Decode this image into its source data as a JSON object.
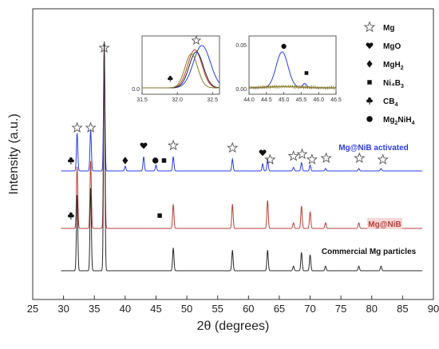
{
  "chart_data": {
    "type": "line",
    "xlabel": "2θ (degrees)",
    "ylabel": "Intensity (a.u.)",
    "xlim": [
      25,
      90
    ],
    "x_ticks": [
      "25",
      "30",
      "35",
      "40",
      "45",
      "50",
      "55",
      "60",
      "65",
      "70",
      "75",
      "80",
      "85",
      "90"
    ],
    "series": [
      {
        "name": "Mg@NiB activated",
        "color": "#2a3edb",
        "label_bg": "",
        "peaks": [
          {
            "x": 32.2,
            "h": 0.32
          },
          {
            "x": 34.4,
            "h": 0.35
          },
          {
            "x": 36.6,
            "h": 1.0
          },
          {
            "x": 40.0,
            "h": 0.04
          },
          {
            "x": 43.0,
            "h": 0.12
          },
          {
            "x": 45.0,
            "h": 0.05
          },
          {
            "x": 47.8,
            "h": 0.12
          },
          {
            "x": 57.4,
            "h": 0.1
          },
          {
            "x": 62.3,
            "h": 0.06
          },
          {
            "x": 63.1,
            "h": 0.1
          },
          {
            "x": 67.3,
            "h": 0.03
          },
          {
            "x": 68.6,
            "h": 0.07
          },
          {
            "x": 70.0,
            "h": 0.05
          },
          {
            "x": 72.5,
            "h": 0.02
          },
          {
            "x": 77.9,
            "h": 0.02
          },
          {
            "x": 81.5,
            "h": 0.02
          }
        ]
      },
      {
        "name": "Mg@NiB",
        "color": "#b5403a",
        "label_bg": "#f6d6d6",
        "peaks": [
          {
            "x": 32.2,
            "h": 0.33
          },
          {
            "x": 34.4,
            "h": 0.36
          },
          {
            "x": 36.6,
            "h": 1.0
          },
          {
            "x": 47.8,
            "h": 0.13
          },
          {
            "x": 57.4,
            "h": 0.13
          },
          {
            "x": 63.1,
            "h": 0.15
          },
          {
            "x": 67.3,
            "h": 0.03
          },
          {
            "x": 68.6,
            "h": 0.12
          },
          {
            "x": 70.0,
            "h": 0.09
          },
          {
            "x": 72.5,
            "h": 0.03
          },
          {
            "x": 77.9,
            "h": 0.03
          },
          {
            "x": 81.5,
            "h": 0.02
          }
        ]
      },
      {
        "name": "Commercial Mg particles",
        "color": "#2b2b2b",
        "label_bg": "",
        "peaks": [
          {
            "x": 32.2,
            "h": 0.33
          },
          {
            "x": 34.4,
            "h": 0.36
          },
          {
            "x": 36.6,
            "h": 1.0
          },
          {
            "x": 47.8,
            "h": 0.1
          },
          {
            "x": 57.4,
            "h": 0.09
          },
          {
            "x": 63.1,
            "h": 0.09
          },
          {
            "x": 67.3,
            "h": 0.02
          },
          {
            "x": 68.6,
            "h": 0.08
          },
          {
            "x": 70.0,
            "h": 0.07
          },
          {
            "x": 72.5,
            "h": 0.02
          },
          {
            "x": 77.9,
            "h": 0.02
          },
          {
            "x": 81.5,
            "h": 0.02
          }
        ]
      }
    ],
    "legend": [
      {
        "marker": "star",
        "label": "Mg",
        "sub": ""
      },
      {
        "marker": "heart",
        "label": "MgO",
        "sub": ""
      },
      {
        "marker": "diamond",
        "label": "MgH",
        "sub": "2"
      },
      {
        "marker": "square",
        "label": "Ni₄B",
        "sub": "3"
      },
      {
        "marker": "club",
        "label": "CB",
        "sub": "4"
      },
      {
        "marker": "circle",
        "label": "Mg",
        "sub": "2",
        "tail": "NiH",
        "tail_sub": "4"
      }
    ],
    "phase_markers": [
      {
        "marker": "star",
        "x": 36.6,
        "row": "top"
      },
      {
        "marker": "star",
        "x": 32.2,
        "row": "activated"
      },
      {
        "marker": "star",
        "x": 34.4,
        "row": "activated"
      },
      {
        "marker": "club",
        "x": 31.2,
        "row": "activated"
      },
      {
        "marker": "diamond",
        "x": 40.0,
        "row": "activated"
      },
      {
        "marker": "heart",
        "x": 43.0,
        "row": "activated"
      },
      {
        "marker": "circle",
        "x": 44.9,
        "row": "activated"
      },
      {
        "marker": "square",
        "x": 46.3,
        "row": "activated"
      },
      {
        "marker": "star",
        "x": 47.8,
        "row": "activated"
      },
      {
        "marker": "star",
        "x": 57.4,
        "row": "activated"
      },
      {
        "marker": "heart",
        "x": 62.3,
        "row": "activated"
      },
      {
        "marker": "star",
        "x": 63.5,
        "row": "activated"
      },
      {
        "marker": "star",
        "x": 67.3,
        "row": "activated"
      },
      {
        "marker": "star",
        "x": 68.7,
        "row": "activated"
      },
      {
        "marker": "star",
        "x": 70.3,
        "row": "activated"
      },
      {
        "marker": "star",
        "x": 72.6,
        "row": "activated"
      },
      {
        "marker": "star",
        "x": 78.0,
        "row": "activated"
      },
      {
        "marker": "star",
        "x": 81.8,
        "row": "activated"
      },
      {
        "marker": "club",
        "x": 31.2,
        "row": "nib"
      },
      {
        "marker": "square",
        "x": 45.6,
        "row": "nib"
      }
    ],
    "insets": [
      {
        "xlim": [
          31.5,
          32.6
        ],
        "x_ticks": [
          "31.5",
          "32.0",
          "32.5"
        ],
        "y_ticks": [
          "0.0"
        ],
        "curves": [
          {
            "color": "#2a3edb",
            "center": 32.35,
            "width": 0.12,
            "height": 1.0
          },
          {
            "color": "#b5403a",
            "center": 32.25,
            "width": 0.1,
            "height": 0.9
          },
          {
            "color": "#2b2b2b",
            "center": 32.27,
            "width": 0.1,
            "height": 0.85
          },
          {
            "color": "#8a7a2a",
            "center": 32.2,
            "width": 0.09,
            "height": 0.8
          }
        ],
        "markers": [
          {
            "marker": "club",
            "x": 31.9,
            "y": 0.22
          },
          {
            "marker": "star",
            "x": 32.27,
            "y": 1.12
          }
        ]
      },
      {
        "xlim": [
          44.0,
          46.5
        ],
        "x_ticks": [
          "44.0",
          "44.5",
          "45.0",
          "45.5",
          "46.0",
          "46.5"
        ],
        "y_ticks": [
          "0.05",
          "0.00"
        ],
        "curves": [
          {
            "color": "#2a3edb",
            "center": 44.95,
            "width": 0.17,
            "height": 0.85,
            "bump_center": 45.6,
            "bump_height": 0.1
          },
          {
            "color": "#8a7a2a",
            "center": 45.0,
            "width": 0.5,
            "height": 0.03
          }
        ],
        "markers": [
          {
            "marker": "circle",
            "x": 45.0,
            "y": 0.98
          },
          {
            "marker": "square",
            "x": 45.65,
            "y": 0.35
          }
        ]
      }
    ]
  }
}
